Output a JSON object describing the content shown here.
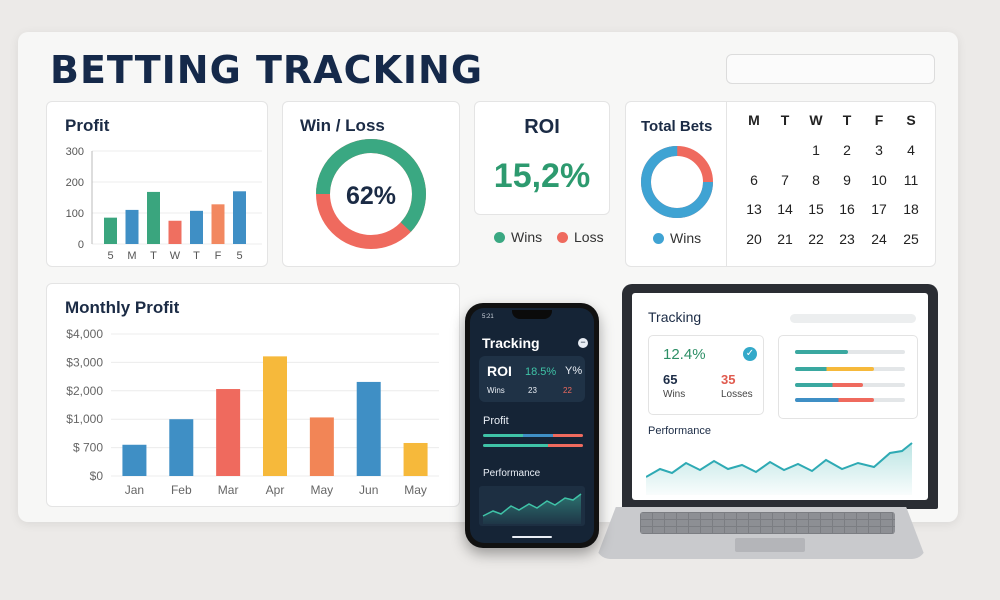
{
  "header": {
    "title": "BETTING TRACKING"
  },
  "profit_card": {
    "title": "Profit",
    "y_ticks": [
      "300",
      "200",
      "100",
      "0"
    ],
    "x_ticks": [
      "5",
      "M",
      "T",
      "W",
      "T",
      "F",
      "5"
    ],
    "values": [
      85,
      110,
      168,
      75,
      107,
      128,
      170
    ],
    "colors": [
      "#3aa57e",
      "#3f8fc5",
      "#3aa57e",
      "#ef6f60",
      "#3f8fc5",
      "#f28860",
      "#3f8fc5"
    ]
  },
  "winloss_card": {
    "title": "Win / Loss",
    "percent": "62%",
    "win_fraction": 0.62,
    "win_color": "#3aa882",
    "loss_color": "#ef6a5e"
  },
  "roi_card": {
    "title": "ROI",
    "value": "15,2%"
  },
  "roi_legend": {
    "wins": "Wins",
    "loss": "Loss"
  },
  "total_bets_card": {
    "title": "Total Bets",
    "legend": "Wins",
    "win_fraction": 0.75,
    "win_color": "#3fa3d3",
    "loss_color": "#ef6a5e"
  },
  "calendar": {
    "headers": [
      "M",
      "T",
      "W",
      "T",
      "F",
      "S"
    ],
    "rows": [
      [
        "",
        "",
        "1",
        "2",
        "3",
        "4"
      ],
      [
        "6",
        "7",
        "8",
        "9",
        "10",
        "11"
      ],
      [
        "13",
        "14",
        "15",
        "16",
        "17",
        "18"
      ],
      [
        "20",
        "21",
        "22",
        "23",
        "24",
        "25"
      ]
    ]
  },
  "chart_data": {
    "type": "bar",
    "title": "Monthly Profit",
    "categories": [
      "Jan",
      "Feb",
      "Mar",
      "Apr",
      "May",
      "Jun",
      "May"
    ],
    "values": [
      880,
      1600,
      2450,
      3370,
      1650,
      2650,
      930
    ],
    "y_ticks": [
      "$4,000",
      "$3,000",
      "$2,000",
      "$1,000",
      "$ 700",
      "$0"
    ],
    "ylim": [
      0,
      4000
    ],
    "colors": [
      "#3f8fc5",
      "#3f8fc5",
      "#ef6a5e",
      "#f6b93b",
      "#f28556",
      "#3f8fc5",
      "#f6b93b"
    ]
  },
  "phone": {
    "status_time": "5:21",
    "title": "Tracking",
    "roi_label": "ROI",
    "roi_value": "18.5%",
    "roi_extra": "Y%",
    "wins_label": "Wins",
    "wins_value": "23",
    "loss_value": "22",
    "profit_label": "Profit",
    "performance_label": "Performance"
  },
  "laptop": {
    "title": "Tracking",
    "roi_value": "12.4%",
    "wins_value": "65",
    "wins_label": "Wins",
    "losses_value": "35",
    "losses_label": "Losses",
    "performance_label": "Performance"
  }
}
